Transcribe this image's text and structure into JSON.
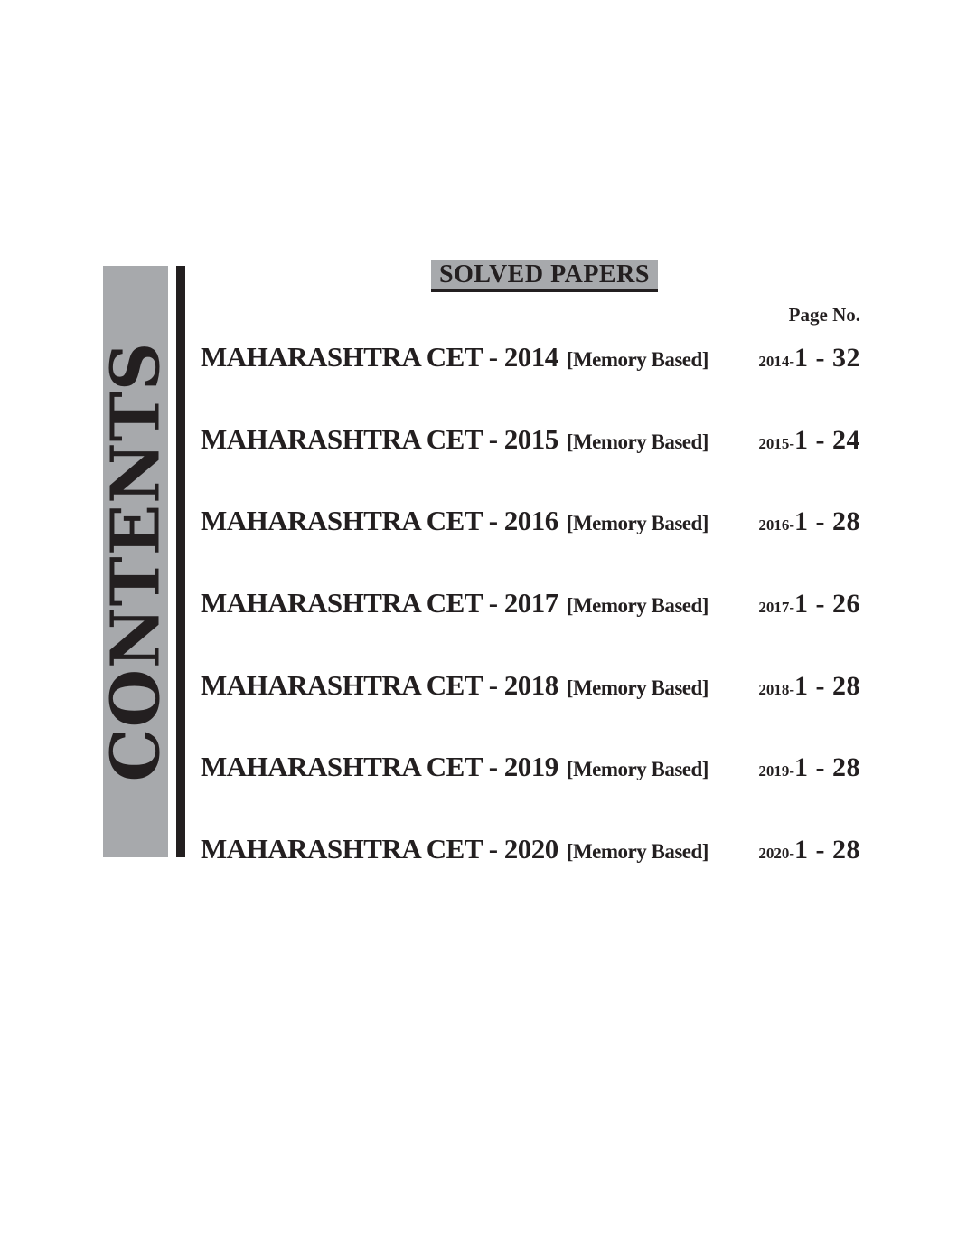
{
  "sidebar": {
    "label": "CONTENTS"
  },
  "header": {
    "title": "SOLVED PAPERS",
    "page_no_label": "Page No."
  },
  "rows": [
    {
      "title": "MAHARASHTRA CET - 2014",
      "tag": "[Memory Based]",
      "page_prefix": "2014-",
      "pages": "1 - 32"
    },
    {
      "title": "MAHARASHTRA CET - 2015",
      "tag": "[Memory Based]",
      "page_prefix": "2015-",
      "pages": "1 - 24"
    },
    {
      "title": "MAHARASHTRA CET - 2016",
      "tag": "[Memory Based]",
      "page_prefix": "2016-",
      "pages": "1 - 28"
    },
    {
      "title": "MAHARASHTRA CET - 2017",
      "tag": "[Memory Based]",
      "page_prefix": "2017-",
      "pages": "1 - 26"
    },
    {
      "title": "MAHARASHTRA CET - 2018",
      "tag": "[Memory Based]",
      "page_prefix": "2018-",
      "pages": "1 - 28"
    },
    {
      "title": "MAHARASHTRA CET - 2019",
      "tag": "[Memory Based]",
      "page_prefix": "2019-",
      "pages": "1 - 28"
    },
    {
      "title": "MAHARASHTRA CET - 2020",
      "tag": "[Memory Based]",
      "page_prefix": "2020-",
      "pages": "1 - 28"
    }
  ],
  "colors": {
    "band_gray": "#a7a9ac",
    "ink_black": "#231f20",
    "background": "#ffffff"
  }
}
